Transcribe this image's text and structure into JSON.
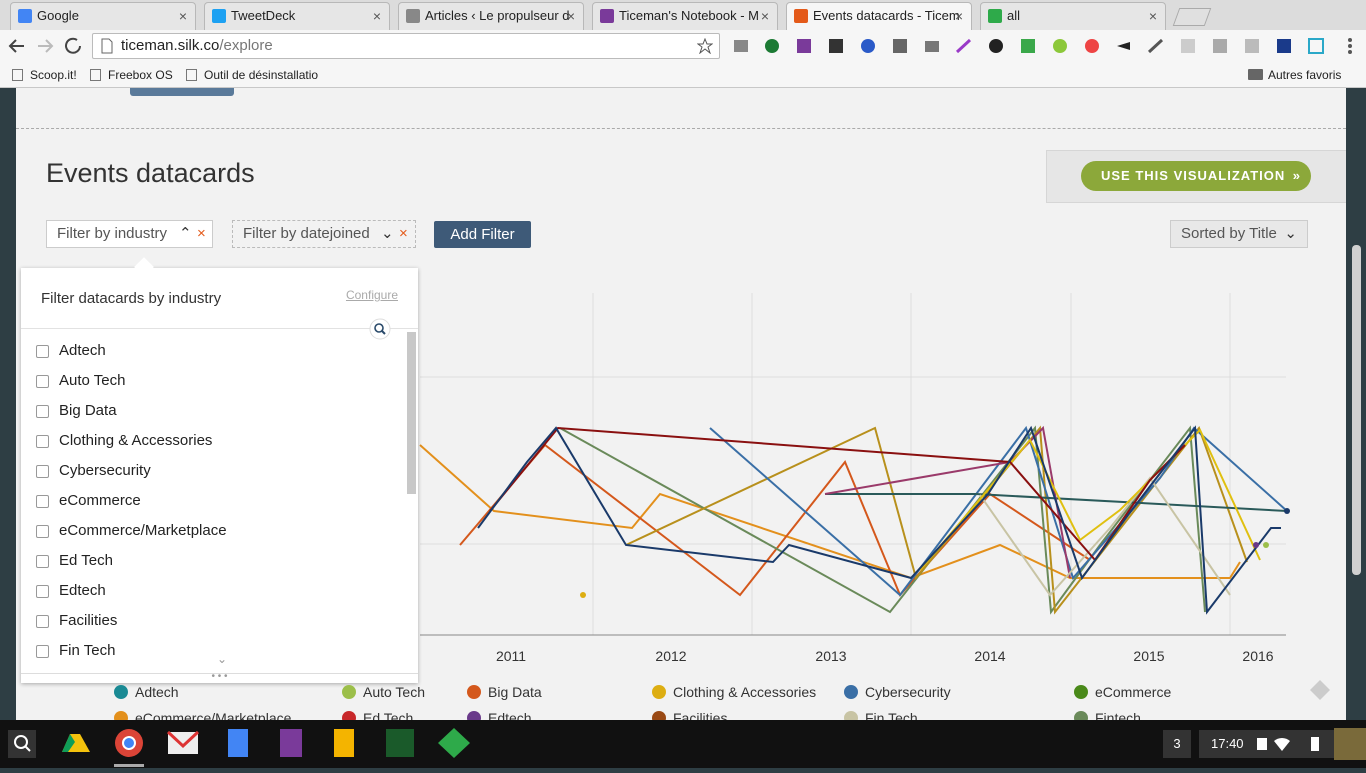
{
  "browser": {
    "tabs": [
      "Google",
      "TweetDeck",
      "Articles ‹ Le propulseur d",
      "Ticeman's Notebook - M",
      "Events datacards - Ticem",
      "all"
    ],
    "url_host": "ticeman.silk.co",
    "url_path": "/explore",
    "bookmarks": [
      "Scoop.it!",
      "Freebox OS",
      "Outil de désinstallatio"
    ],
    "other_bookmarks": "Autres favoris"
  },
  "page": {
    "title": "Events datacards",
    "cta": "USE THIS VISUALIZATION",
    "filters": [
      "Filter by industry",
      "Filter by datejoined"
    ],
    "add_filter": "Add Filter",
    "sort": "Sorted by Title",
    "dropdown": {
      "heading": "Filter datacards by industry",
      "configure": "Configure",
      "items": [
        "Adtech",
        "Auto Tech",
        "Big Data",
        "Clothing & Accessories",
        "Cybersecurity",
        "eCommerce",
        "eCommerce/Marketplace",
        "Ed Tech",
        "Edtech",
        "Facilities",
        "Fin Tech"
      ]
    },
    "chart": {
      "x_labels": [
        "2011",
        "2012",
        "2013",
        "2014",
        "2015",
        "2016"
      ],
      "legend": [
        {
          "name": "Adtech",
          "color": "#1a8a94"
        },
        {
          "name": "Auto Tech",
          "color": "#9cbf4a"
        },
        {
          "name": "Big Data",
          "color": "#d4581c"
        },
        {
          "name": "Clothing & Accessories",
          "color": "#ddae12"
        },
        {
          "name": "Cybersecurity",
          "color": "#3a6fa6"
        },
        {
          "name": "eCommerce",
          "color": "#4a8a1a"
        },
        {
          "name": "eCommerce/Marketplace",
          "color": "#e3901c"
        },
        {
          "name": "Ed Tech",
          "color": "#c8282a"
        },
        {
          "name": "Edtech",
          "color": "#6a3a8a"
        },
        {
          "name": "Facilities",
          "color": "#9a4a14"
        },
        {
          "name": "Fin Tech",
          "color": "#c8c4a4"
        },
        {
          "name": "Fintech",
          "color": "#6a8a5a"
        }
      ]
    }
  },
  "taskbar": {
    "badge": "3",
    "time": "17:40"
  }
}
